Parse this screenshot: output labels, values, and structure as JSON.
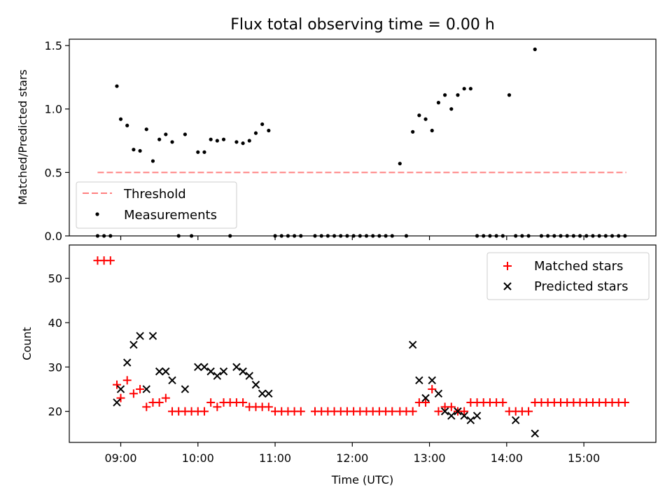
{
  "chart_data": [
    {
      "type": "scatter",
      "title": "Flux total observing time = 0.00 h",
      "xlabel": "",
      "ylabel": "Matched/Predicted stars",
      "ylim": [
        0,
        1.55
      ],
      "yticks": [
        "0.0",
        "0.5",
        "1.0",
        "1.5"
      ],
      "ytick_values": [
        0,
        0.5,
        1.0,
        1.5
      ],
      "legend": {
        "placement": "lower-left",
        "entries": [
          "Threshold",
          "Measurements"
        ]
      },
      "threshold": {
        "name": "Threshold",
        "value": 0.5,
        "x_start": "08:42",
        "x_end": "15:33",
        "color": "#ff8080"
      },
      "series": [
        {
          "name": "Measurements",
          "color": "#000000",
          "x": [
            "08:42",
            "08:47",
            "08:52",
            "08:57",
            "09:00",
            "09:05",
            "09:10",
            "09:15",
            "09:20",
            "09:25",
            "09:30",
            "09:35",
            "09:40",
            "09:45",
            "09:50",
            "09:55",
            "10:00",
            "10:05",
            "10:10",
            "10:15",
            "10:20",
            "10:25",
            "10:30",
            "10:35",
            "10:40",
            "10:45",
            "10:50",
            "10:55",
            "11:00",
            "11:05",
            "11:10",
            "11:15",
            "11:20",
            "11:31",
            "11:36",
            "11:41",
            "11:46",
            "11:51",
            "11:56",
            "12:01",
            "12:06",
            "12:11",
            "12:16",
            "12:21",
            "12:26",
            "12:31",
            "12:37",
            "12:42",
            "12:47",
            "12:52",
            "12:57",
            "13:02",
            "13:07",
            "13:12",
            "13:17",
            "13:22",
            "13:27",
            "13:32",
            "13:37",
            "13:42",
            "13:47",
            "13:52",
            "13:57",
            "14:02",
            "14:07",
            "14:12",
            "14:17",
            "14:22",
            "14:27",
            "14:32",
            "14:37",
            "14:42",
            "14:47",
            "14:52",
            "14:57",
            "15:02",
            "15:07",
            "15:12",
            "15:17",
            "15:22",
            "15:27",
            "15:32"
          ],
          "y": [
            0,
            0,
            0,
            1.18,
            0.92,
            0.87,
            0.68,
            0.67,
            0.84,
            0.59,
            0.76,
            0.8,
            0.74,
            0,
            0.8,
            0,
            0.66,
            0.66,
            0.76,
            0.75,
            0.76,
            0,
            0.74,
            0.73,
            0.75,
            0.81,
            0.88,
            0.83,
            0,
            0,
            0,
            0,
            0,
            0,
            0,
            0,
            0,
            0,
            0,
            0,
            0,
            0,
            0,
            0,
            0,
            0,
            0.57,
            0,
            0.82,
            0.95,
            0.92,
            0.83,
            1.05,
            1.11,
            1.0,
            1.11,
            1.16,
            1.16,
            0,
            0,
            0,
            0,
            0,
            1.11,
            0,
            0,
            0,
            1.47,
            0,
            0,
            0,
            0,
            0,
            0,
            0,
            0,
            0,
            0,
            0,
            0,
            0,
            0
          ]
        }
      ]
    },
    {
      "type": "scatter",
      "title": "",
      "xlabel": "Time (UTC)",
      "ylabel": "Count",
      "ylim": [
        13,
        57.5
      ],
      "yticks": [
        "20",
        "30",
        "40",
        "50"
      ],
      "ytick_values": [
        20,
        30,
        40,
        50
      ],
      "xticks": [
        "09:00",
        "10:00",
        "11:00",
        "12:00",
        "13:00",
        "14:00",
        "15:00"
      ],
      "xlim": [
        "08:20",
        "15:56"
      ],
      "legend": {
        "placement": "top-right",
        "entries": [
          "Matched stars",
          "Predicted stars"
        ]
      },
      "series": [
        {
          "name": "Matched stars",
          "marker": "+",
          "color": "#ff0000",
          "x": [
            "08:42",
            "08:47",
            "08:52",
            "08:57",
            "09:00",
            "09:05",
            "09:10",
            "09:15",
            "09:20",
            "09:25",
            "09:30",
            "09:35",
            "09:40",
            "09:45",
            "09:50",
            "09:55",
            "10:00",
            "10:05",
            "10:10",
            "10:15",
            "10:20",
            "10:25",
            "10:30",
            "10:35",
            "10:40",
            "10:45",
            "10:50",
            "10:55",
            "11:00",
            "11:05",
            "11:10",
            "11:15",
            "11:20",
            "11:31",
            "11:36",
            "11:41",
            "11:46",
            "11:51",
            "11:56",
            "12:01",
            "12:06",
            "12:11",
            "12:16",
            "12:21",
            "12:26",
            "12:31",
            "12:37",
            "12:42",
            "12:47",
            "12:52",
            "12:57",
            "13:02",
            "13:07",
            "13:12",
            "13:17",
            "13:22",
            "13:27",
            "13:32",
            "13:37",
            "13:42",
            "13:47",
            "13:52",
            "13:57",
            "14:02",
            "14:07",
            "14:12",
            "14:17",
            "14:22",
            "14:27",
            "14:32",
            "14:37",
            "14:42",
            "14:47",
            "14:52",
            "14:57",
            "15:02",
            "15:07",
            "15:12",
            "15:17",
            "15:22",
            "15:27",
            "15:32"
          ],
          "y": [
            54,
            54,
            54,
            26,
            23,
            27,
            24,
            25,
            21,
            22,
            22,
            23,
            20,
            20,
            20,
            20,
            20,
            20,
            22,
            21,
            22,
            22,
            22,
            22,
            21,
            21,
            21,
            21,
            20,
            20,
            20,
            20,
            20,
            20,
            20,
            20,
            20,
            20,
            20,
            20,
            20,
            20,
            20,
            20,
            20,
            20,
            20,
            20,
            20,
            22,
            22,
            25,
            20,
            21,
            21,
            20,
            20,
            22,
            22,
            22,
            22,
            22,
            22,
            20,
            20,
            20,
            20,
            22,
            22,
            22,
            22,
            22,
            22,
            22,
            22,
            22,
            22,
            22,
            22,
            22,
            22,
            22
          ]
        },
        {
          "name": "Predicted stars",
          "marker": "x",
          "color": "#000000",
          "x": [
            "08:57",
            "09:00",
            "09:05",
            "09:10",
            "09:15",
            "09:20",
            "09:25",
            "09:30",
            "09:35",
            "09:40",
            "09:50",
            "10:00",
            "10:05",
            "10:10",
            "10:15",
            "10:20",
            "10:30",
            "10:35",
            "10:40",
            "10:45",
            "10:50",
            "10:55",
            "12:47",
            "12:52",
            "12:57",
            "13:02",
            "13:07",
            "13:12",
            "13:17",
            "13:22",
            "13:27",
            "13:32",
            "13:37",
            "14:07",
            "14:22"
          ],
          "y": [
            22,
            25,
            31,
            35,
            37,
            25,
            37,
            29,
            29,
            27,
            25,
            30,
            30,
            29,
            28,
            29,
            30,
            29,
            28,
            26,
            24,
            24,
            35,
            27,
            23,
            27,
            24,
            20,
            19,
            20,
            19,
            18,
            19,
            18,
            15
          ]
        }
      ]
    }
  ]
}
